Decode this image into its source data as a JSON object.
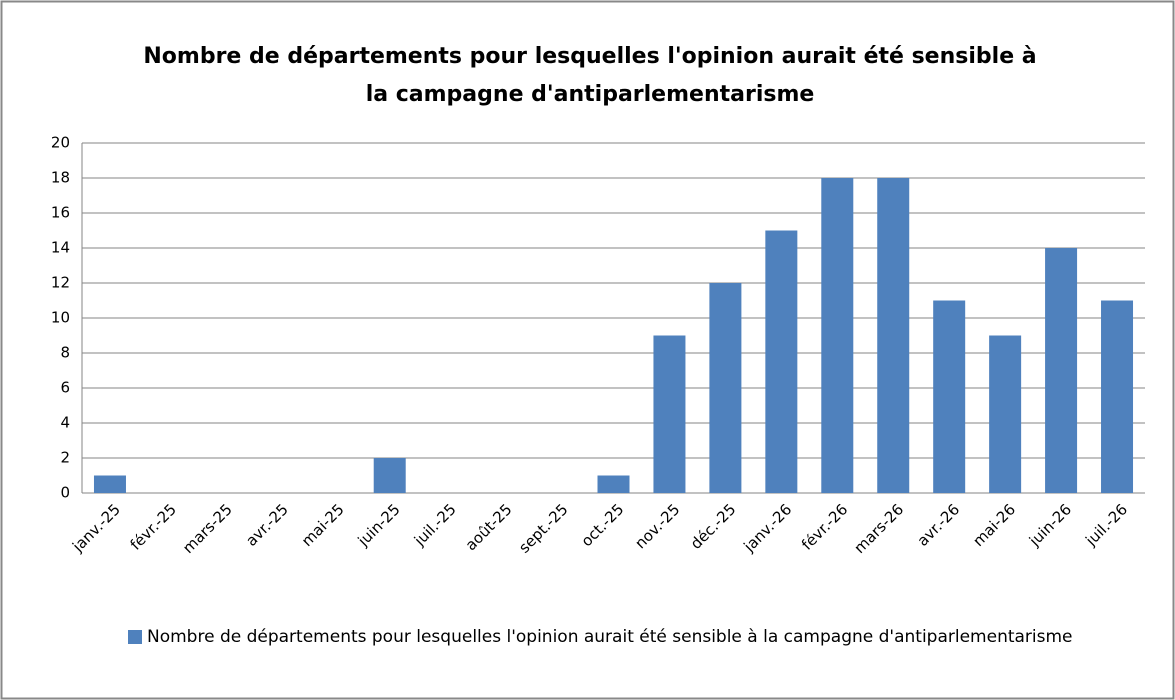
{
  "chart_data": {
    "type": "bar",
    "title": "Nombre de départements pour lesquelles l'opinion aurait été sensible à la campagne d'antiparlementarisme",
    "categories": [
      "janv.-25",
      "févr.-25",
      "mars-25",
      "avr.-25",
      "mai-25",
      "juin-25",
      "juil.-25",
      "août-25",
      "sept.-25",
      "oct.-25",
      "nov.-25",
      "déc.-25",
      "janv.-26",
      "févr.-26",
      "mars-26",
      "avr.-26",
      "mai-26",
      "juin-26",
      "juil.-26"
    ],
    "series": [
      {
        "name": "Nombre de départements pour lesquelles l'opinion aurait été sensible à la campagne d'antiparlementarisme",
        "color": "#4f81bd",
        "values": [
          1,
          0,
          0,
          0,
          0,
          2,
          0,
          0,
          0,
          1,
          9,
          12,
          15,
          18,
          18,
          11,
          9,
          14,
          11
        ]
      }
    ],
    "ylim": [
      0,
      20
    ],
    "yticks": [
      0,
      2,
      4,
      6,
      8,
      10,
      12,
      14,
      16,
      18,
      20
    ],
    "grid": true,
    "legend": "bottom"
  }
}
